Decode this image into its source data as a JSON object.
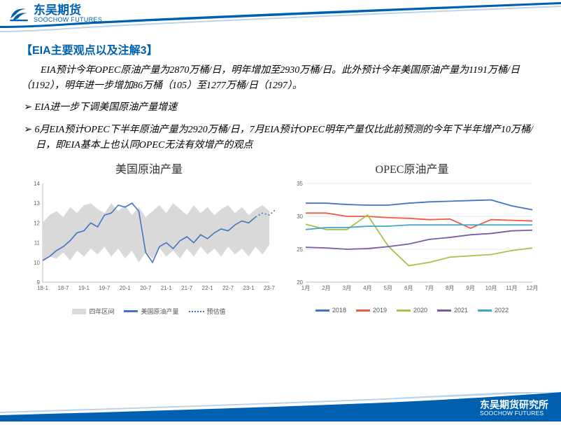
{
  "header": {
    "brand_cn": "东吴期货",
    "brand_en": "SOOCHOW FUTURES"
  },
  "section_title": "【EIA主要观点以及注解3】",
  "paragraph": "EIA预计今年OPEC原油产量为2870万桶/日，明年增加至2930万桶/日。此外预计今年美国原油产量为1191万桶/日（1192），明年进一步增加86万桶（105）至1277万桶/日（1297）。",
  "bullets": [
    "EIA进一步下调美国原油产量增速",
    "6月EIA预计OPEC下半年原油产量为2920万桶/日，7月EIA预计OPEC明年产量仅比此前预测的今年下半年增产10万桶/日，即EIA基本上也认同OPEC无法有效增产的观点"
  ],
  "chart_left": {
    "title": "美国原油产量",
    "type": "line-band",
    "ylim": [
      9,
      14
    ],
    "yticks": [
      9,
      10,
      11,
      12,
      13,
      14
    ],
    "x_labels": [
      "18-1",
      "18-7",
      "19-1",
      "19-7",
      "20-1",
      "20-7",
      "21-1",
      "21-7",
      "22-1",
      "22-7",
      "23-1",
      "23-7"
    ],
    "band_color": "#d9d9d9",
    "band_top": [
      12.0,
      12.4,
      12.6,
      12.3,
      12.8,
      12.5,
      12.9,
      13.0,
      12.7,
      12.5,
      13.0,
      12.6,
      12.9,
      12.4,
      12.8,
      12.3,
      12.6,
      12.9,
      12.5,
      13.0,
      12.7,
      12.4,
      12.9,
      12.5,
      12.8,
      12.4,
      12.7,
      12.9,
      12.5,
      12.8,
      12.4,
      12.7,
      12.9,
      12.6
    ],
    "band_bot": [
      10.0,
      10.3,
      10.2,
      10.5,
      10.1,
      10.6,
      10.3,
      10.7,
      10.4,
      10.8,
      10.3,
      10.7,
      10.2,
      10.6,
      10.0,
      10.5,
      10.2,
      10.7,
      10.3,
      10.6,
      10.2,
      10.7,
      10.3,
      10.8,
      10.4,
      10.7,
      10.3,
      10.8,
      10.4,
      10.7,
      10.3,
      10.8,
      10.4,
      10.9
    ],
    "line_color": "#4472c4",
    "line": [
      10.1,
      10.3,
      10.6,
      10.8,
      11.1,
      11.5,
      11.6,
      12.0,
      11.8,
      12.4,
      12.5,
      12.9,
      12.8,
      13.0,
      12.6,
      10.5,
      10.0,
      10.8,
      11.0,
      10.7,
      11.1,
      11.3,
      11.0,
      11.4,
      11.2,
      11.5,
      11.7,
      11.6,
      11.9,
      12.1,
      12.0,
      12.3
    ],
    "est_color": "#4472c4",
    "est_dash": true,
    "est": [
      12.3,
      12.5,
      12.4,
      12.7,
      12.6,
      12.9,
      13.2
    ],
    "legend": {
      "band": "四年区间",
      "line": "美国原油产量",
      "est": "预估值"
    },
    "background_color": "#ffffff",
    "axis_color": "#bfbfbf",
    "label_fontsize": 8,
    "tick_fontsize": 8
  },
  "chart_right": {
    "title": "OPEC原油产量",
    "type": "line",
    "ylim": [
      20,
      35
    ],
    "yticks": [
      20,
      25,
      30,
      35
    ],
    "x_labels": [
      "1月",
      "2月",
      "3月",
      "4月",
      "5月",
      "6月",
      "7月",
      "8月",
      "9月",
      "10月",
      "11月",
      "12月"
    ],
    "series": [
      {
        "name": "2018",
        "color": "#4472c4",
        "vals": [
          32.0,
          32.0,
          31.8,
          31.7,
          31.7,
          32.0,
          32.2,
          32.3,
          32.4,
          32.5,
          31.6,
          31.0
        ]
      },
      {
        "name": "2019",
        "color": "#ed5b49",
        "vals": [
          30.5,
          30.5,
          30.0,
          30.0,
          29.8,
          29.7,
          29.5,
          29.6,
          28.2,
          29.5,
          29.4,
          29.3
        ]
      },
      {
        "name": "2020",
        "color": "#a5c249",
        "vals": [
          28.8,
          28.0,
          28.0,
          30.2,
          25.5,
          22.5,
          23.0,
          23.8,
          24.0,
          24.2,
          24.8,
          25.2
        ]
      },
      {
        "name": "2021",
        "color": "#7b5ba6",
        "vals": [
          25.3,
          25.2,
          25.0,
          25.1,
          25.4,
          25.8,
          26.5,
          26.8,
          27.2,
          27.4,
          27.8,
          27.9
        ]
      },
      {
        "name": "2022",
        "color": "#42a6c6",
        "vals": [
          28.0,
          28.3,
          28.3,
          28.5,
          28.5,
          28.7,
          28.7,
          28.7,
          28.7,
          28.7,
          28.7,
          28.7
        ]
      }
    ],
    "background_color": "#ffffff",
    "axis_color": "#bfbfbf",
    "grid_color": "#e8e8e8",
    "label_fontsize": 8
  },
  "footer": {
    "org_cn": "东吴期货研究所",
    "org_en": "SOOCHOW FUTURES"
  }
}
